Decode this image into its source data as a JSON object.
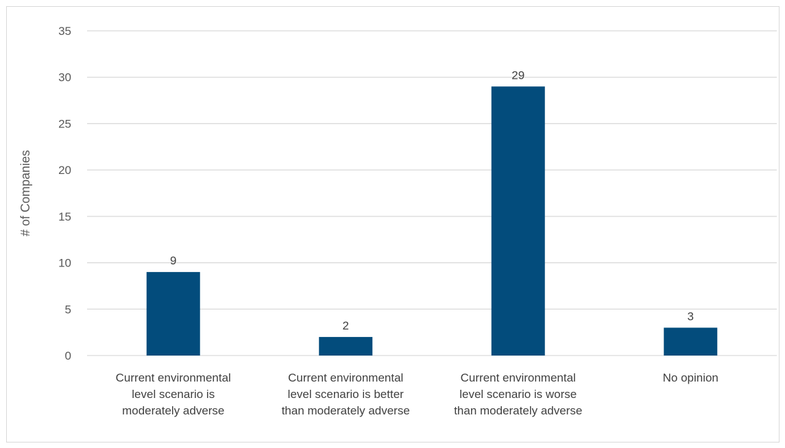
{
  "chart_data": {
    "type": "bar",
    "title": "",
    "xlabel": "",
    "ylabel": "# of Companies",
    "ylim": [
      0,
      35
    ],
    "yticks": [
      0,
      5,
      10,
      15,
      20,
      25,
      30,
      35
    ],
    "categories": [
      [
        "Current environmental",
        "level scenario is",
        "moderately adverse"
      ],
      [
        "Current environmental",
        "level scenario is better",
        "than moderately adverse"
      ],
      [
        "Current environmental",
        "level scenario is worse",
        "than moderately adverse"
      ],
      [
        "No opinion"
      ]
    ],
    "values": [
      9,
      2,
      29,
      3
    ],
    "data_labels": [
      "9",
      "2",
      "29",
      "3"
    ],
    "grid": true,
    "legend": "none",
    "bar_color": "#034C7C",
    "grid_color": "#d9d9d9"
  }
}
